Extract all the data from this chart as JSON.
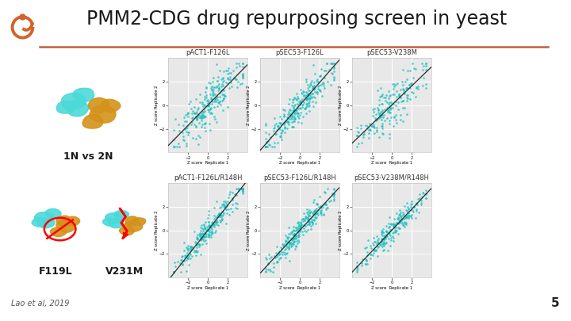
{
  "title": "PMM2-CDG drug repurposing screen in yeast",
  "title_fontsize": 17,
  "title_color": "#1a1a1a",
  "title_underline_color": "#C0603A",
  "background_color": "#ffffff",
  "footer_text": "Lao et al, 2019",
  "slide_number": "5",
  "label_1N2N": "1N vs 2N",
  "label_F119L": "F119L",
  "label_V231M": "V231M",
  "scatter_titles": [
    "pACT1-F126L",
    "pSEC53-F126L",
    "pSEC53-V238M",
    "pACT1-F126L/R148H",
    "pSEC53-F126L/R148H",
    "pSEC53-V238M/R148H"
  ],
  "scatter_color": "#1ABFBF",
  "scatter_bg": "#e8e8e8",
  "grid_color": "#ffffff",
  "line_color": "#2a2a2a",
  "axis_label_x": "Z score  Replicate 1",
  "axis_label_y": "Z score Replicate 2",
  "logo_color": "#D4622A",
  "cyan_color": "#4DD9D9",
  "gold_color": "#D4921A",
  "label_fontsize": 9,
  "footer_fontsize": 7,
  "slide_num_fontsize": 11
}
